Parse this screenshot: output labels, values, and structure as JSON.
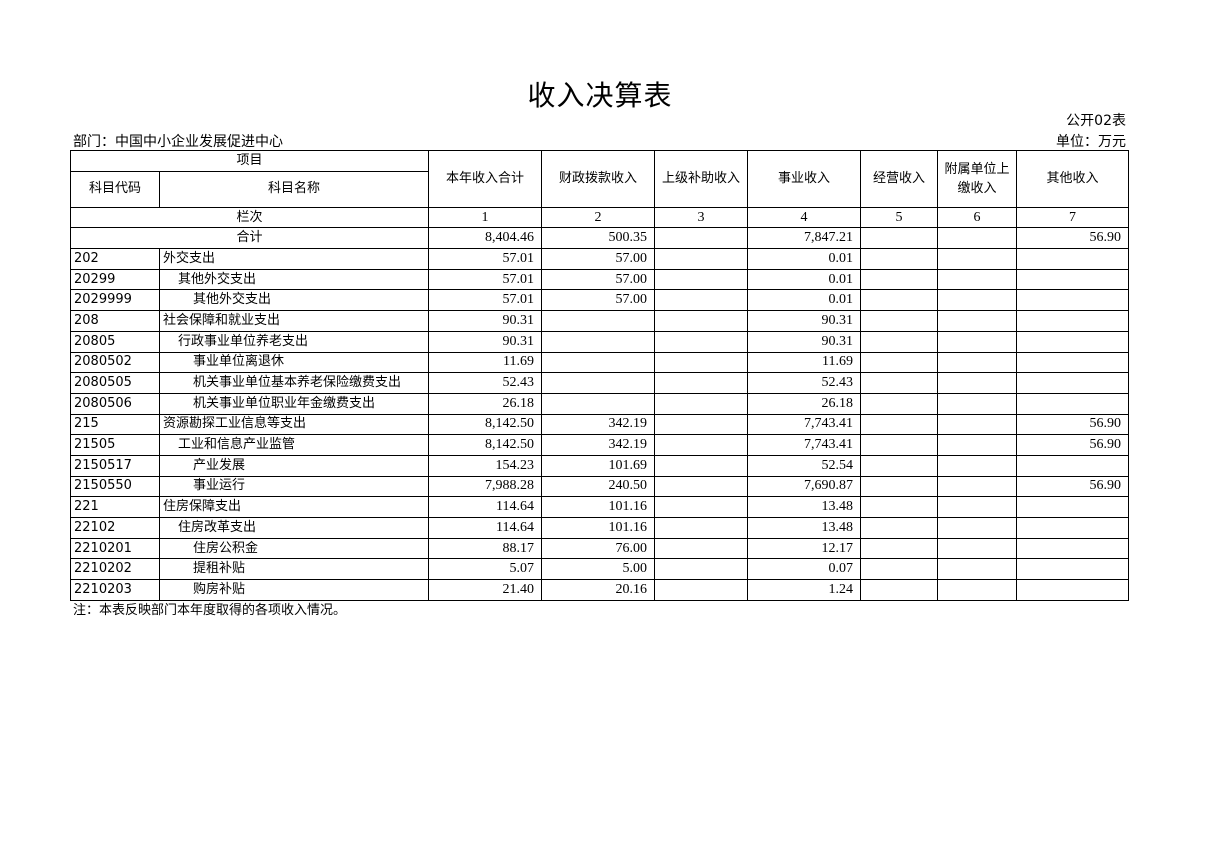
{
  "title": "收入决算表",
  "form_no": "公开02表",
  "department": "部门：中国中小企业发展促进中心",
  "unit": "单位：万元",
  "header": {
    "item": "项目",
    "code": "科目代码",
    "name": "科目名称",
    "columns": [
      "本年收入合计",
      "财政拨款收入",
      "上级补助收入",
      "事业收入",
      "经营收入",
      "附属单位上缴收入",
      "其他收入"
    ],
    "row_label": "栏次",
    "column_numbers": [
      "1",
      "2",
      "3",
      "4",
      "5",
      "6",
      "7"
    ]
  },
  "total": {
    "label": "合计",
    "values": [
      "8,404.46",
      "500.35",
      "",
      "7,847.21",
      "",
      "",
      "56.90"
    ]
  },
  "rows": [
    {
      "code": "202",
      "name": "外交支出",
      "level": 1,
      "values": [
        "57.01",
        "57.00",
        "",
        "0.01",
        "",
        "",
        ""
      ]
    },
    {
      "code": "20299",
      "name": "其他外交支出",
      "level": 2,
      "values": [
        "57.01",
        "57.00",
        "",
        "0.01",
        "",
        "",
        ""
      ]
    },
    {
      "code": "2029999",
      "name": "其他外交支出",
      "level": 3,
      "values": [
        "57.01",
        "57.00",
        "",
        "0.01",
        "",
        "",
        ""
      ]
    },
    {
      "code": "208",
      "name": "社会保障和就业支出",
      "level": 1,
      "values": [
        "90.31",
        "",
        "",
        "90.31",
        "",
        "",
        ""
      ]
    },
    {
      "code": "20805",
      "name": "行政事业单位养老支出",
      "level": 2,
      "values": [
        "90.31",
        "",
        "",
        "90.31",
        "",
        "",
        ""
      ]
    },
    {
      "code": "2080502",
      "name": "事业单位离退休",
      "level": 3,
      "values": [
        "11.69",
        "",
        "",
        "11.69",
        "",
        "",
        ""
      ]
    },
    {
      "code": "2080505",
      "name": "机关事业单位基本养老保险缴费支出",
      "level": 3,
      "values": [
        "52.43",
        "",
        "",
        "52.43",
        "",
        "",
        ""
      ]
    },
    {
      "code": "2080506",
      "name": "机关事业单位职业年金缴费支出",
      "level": 3,
      "values": [
        "26.18",
        "",
        "",
        "26.18",
        "",
        "",
        ""
      ]
    },
    {
      "code": "215",
      "name": "资源勘探工业信息等支出",
      "level": 1,
      "values": [
        "8,142.50",
        "342.19",
        "",
        "7,743.41",
        "",
        "",
        "56.90"
      ]
    },
    {
      "code": "21505",
      "name": "工业和信息产业监管",
      "level": 2,
      "values": [
        "8,142.50",
        "342.19",
        "",
        "7,743.41",
        "",
        "",
        "56.90"
      ]
    },
    {
      "code": "2150517",
      "name": "产业发展",
      "level": 3,
      "values": [
        "154.23",
        "101.69",
        "",
        "52.54",
        "",
        "",
        ""
      ]
    },
    {
      "code": "2150550",
      "name": "事业运行",
      "level": 3,
      "values": [
        "7,988.28",
        "240.50",
        "",
        "7,690.87",
        "",
        "",
        "56.90"
      ]
    },
    {
      "code": "221",
      "name": "住房保障支出",
      "level": 1,
      "values": [
        "114.64",
        "101.16",
        "",
        "13.48",
        "",
        "",
        ""
      ]
    },
    {
      "code": "22102",
      "name": "住房改革支出",
      "level": 2,
      "values": [
        "114.64",
        "101.16",
        "",
        "13.48",
        "",
        "",
        ""
      ]
    },
    {
      "code": "2210201",
      "name": "住房公积金",
      "level": 3,
      "values": [
        "88.17",
        "76.00",
        "",
        "12.17",
        "",
        "",
        ""
      ]
    },
    {
      "code": "2210202",
      "name": "提租补贴",
      "level": 3,
      "values": [
        "5.07",
        "5.00",
        "",
        "0.07",
        "",
        "",
        ""
      ]
    },
    {
      "code": "2210203",
      "name": "购房补贴",
      "level": 3,
      "values": [
        "21.40",
        "20.16",
        "",
        "1.24",
        "",
        "",
        ""
      ]
    }
  ],
  "note": "注：本表反映部门本年度取得的各项收入情况。"
}
